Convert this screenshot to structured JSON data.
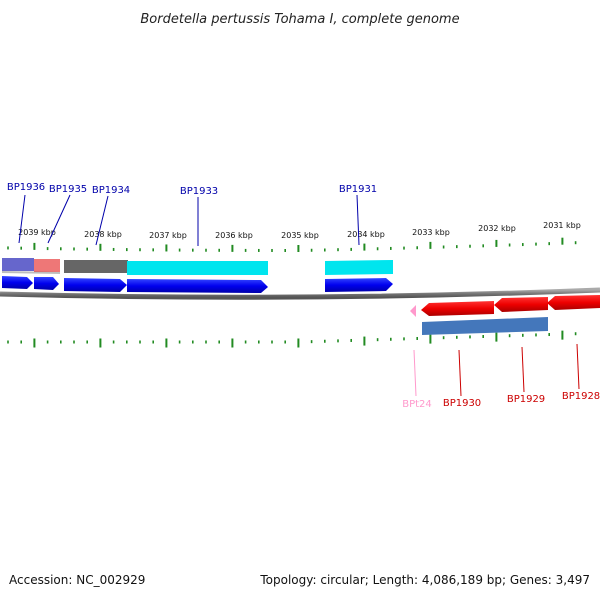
{
  "title": "Bordetella pertussis Tohama I, complete genome",
  "accession": "Accession: NC_002929",
  "summary": "Topology: circular; Length: 4,086,189 bp; Genes: 3,497",
  "colors": {
    "tick": "#228B22",
    "backbone": "#888888",
    "forward_gene": "#0000EE",
    "reverse_gene": "#EE0000",
    "trna": "#FF99CC",
    "forward_label": "#0000AA",
    "reverse_label": "#CC0000",
    "trna_label": "#FF99CC"
  },
  "kbp_ticks": [
    "2039 kbp",
    "2038 kbp",
    "2037 kbp",
    "2036 kbp",
    "2035 kbp",
    "2034 kbp",
    "2033 kbp",
    "2032 kbp",
    "2031 kbp"
  ],
  "genes_forward": [
    {
      "id": "BP1936",
      "strand": "+"
    },
    {
      "id": "BP1935",
      "strand": "+"
    },
    {
      "id": "BP1934",
      "strand": "+"
    },
    {
      "id": "BP1933",
      "strand": "+"
    },
    {
      "id": "BP1931",
      "strand": "+"
    }
  ],
  "genes_reverse": [
    {
      "id": "BPt24",
      "strand": "-",
      "type": "tRNA"
    },
    {
      "id": "BP1930",
      "strand": "-"
    },
    {
      "id": "BP1929",
      "strand": "-"
    },
    {
      "id": "BP1928",
      "strand": "-"
    }
  ],
  "feature_bars": [
    {
      "name": "cog-bar",
      "color": "#6666CC"
    },
    {
      "name": "cog-bar",
      "color": "#EE7777"
    },
    {
      "name": "cog-bar",
      "color": "#666666"
    },
    {
      "name": "cog-bar",
      "color": "#00E5EE"
    },
    {
      "name": "cog-bar",
      "color": "#00E5EE"
    },
    {
      "name": "cog-bar",
      "color": "#4477BB"
    }
  ]
}
